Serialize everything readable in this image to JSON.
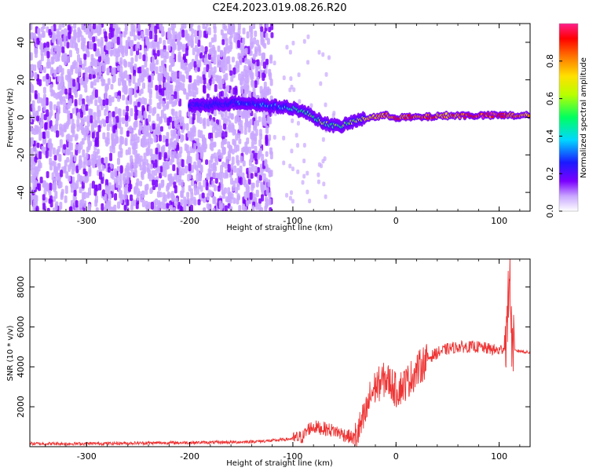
{
  "figure_title": "C2E4.2023.019.08.26.R20",
  "chart_data": [
    {
      "type": "heatmap",
      "title": "",
      "xlabel": "Height of straight line (km)",
      "ylabel": "Frequency (Hz)",
      "xlim": [
        -355,
        130
      ],
      "ylim": [
        -50,
        50
      ],
      "xticks": [
        -300,
        -200,
        -100,
        0,
        100
      ],
      "yticks": [
        -40,
        -20,
        0,
        20,
        40
      ],
      "xtick_labels": [
        "-300",
        "-200",
        "-100",
        "0",
        "100"
      ],
      "ytick_labels": [
        "-40",
        "-20",
        "0",
        "20",
        "40"
      ],
      "colorbar": {
        "label": "Normalized spectral amplitude",
        "range": [
          0,
          1
        ],
        "ticks": [
          0.0,
          0.2,
          0.4,
          0.6,
          0.8
        ],
        "tick_labels": [
          "0.0",
          "0.2",
          "0.4",
          "0.6",
          "0.8"
        ],
        "colormap": [
          "#ffffff",
          "#c9a6ff",
          "#7b00ff",
          "#1a1aff",
          "#00d8ff",
          "#00ff60",
          "#b8ff00",
          "#ffe000",
          "#ff7a00",
          "#ff0000",
          "#ff1e8c"
        ]
      },
      "signal_track": [
        {
          "x": -200,
          "freq": 6,
          "amp": 0.25
        },
        {
          "x": -150,
          "freq": 8,
          "amp": 0.3
        },
        {
          "x": -120,
          "freq": 6,
          "amp": 0.35
        },
        {
          "x": -100,
          "freq": 5,
          "amp": 0.45
        },
        {
          "x": -85,
          "freq": 2,
          "amp": 0.5
        },
        {
          "x": -70,
          "freq": -3,
          "amp": 0.55
        },
        {
          "x": -55,
          "freq": -5,
          "amp": 0.5
        },
        {
          "x": -40,
          "freq": -2,
          "amp": 0.6
        },
        {
          "x": -25,
          "freq": 0,
          "amp": 0.7
        },
        {
          "x": -10,
          "freq": 1,
          "amp": 0.8
        },
        {
          "x": 0,
          "freq": 0,
          "amp": 0.85
        },
        {
          "x": 25,
          "freq": 0,
          "amp": 0.85
        },
        {
          "x": 50,
          "freq": 1,
          "amp": 0.75
        },
        {
          "x": 75,
          "freq": 1,
          "amp": 0.9
        },
        {
          "x": 100,
          "freq": 1,
          "amp": 0.9
        },
        {
          "x": 130,
          "freq": 1,
          "amp": 0.75
        }
      ],
      "noise_region": {
        "x_range": [
          -355,
          -120
        ],
        "freq_range": [
          -50,
          50
        ]
      }
    },
    {
      "type": "line",
      "title": "",
      "xlabel": "Height of straight line (km)",
      "ylabel": "SNR (10 * v/v)",
      "xlim": [
        -355,
        130
      ],
      "ylim": [
        0,
        9400
      ],
      "xticks": [
        -300,
        -200,
        -100,
        0,
        100
      ],
      "yticks": [
        2000,
        4000,
        6000,
        8000
      ],
      "xtick_labels": [
        "-300",
        "-200",
        "-100",
        "0",
        "100"
      ],
      "ytick_labels": [
        "2000",
        "4000",
        "6000",
        "8000"
      ],
      "color": "#ee3333",
      "series": [
        {
          "x": [
            -355,
            -300,
            -250,
            -200,
            -150,
            -120,
            -100,
            -90,
            -85,
            -80,
            -70,
            -60,
            -50,
            -40,
            -30,
            -25,
            -20,
            -15,
            -10,
            -5,
            0,
            10,
            20,
            30,
            40,
            50,
            60,
            70,
            80,
            90,
            100,
            105,
            108,
            110,
            112,
            115,
            120,
            130
          ],
          "y": [
            150,
            150,
            180,
            200,
            230,
            300,
            400,
            500,
            900,
            1000,
            900,
            800,
            600,
            400,
            1500,
            2500,
            3000,
            3200,
            3400,
            3200,
            2800,
            3200,
            3800,
            4400,
            4700,
            4900,
            5000,
            5000,
            5000,
            4900,
            4800,
            5000,
            6000,
            9300,
            5500,
            4800,
            4800,
            4700
          ]
        }
      ]
    }
  ]
}
